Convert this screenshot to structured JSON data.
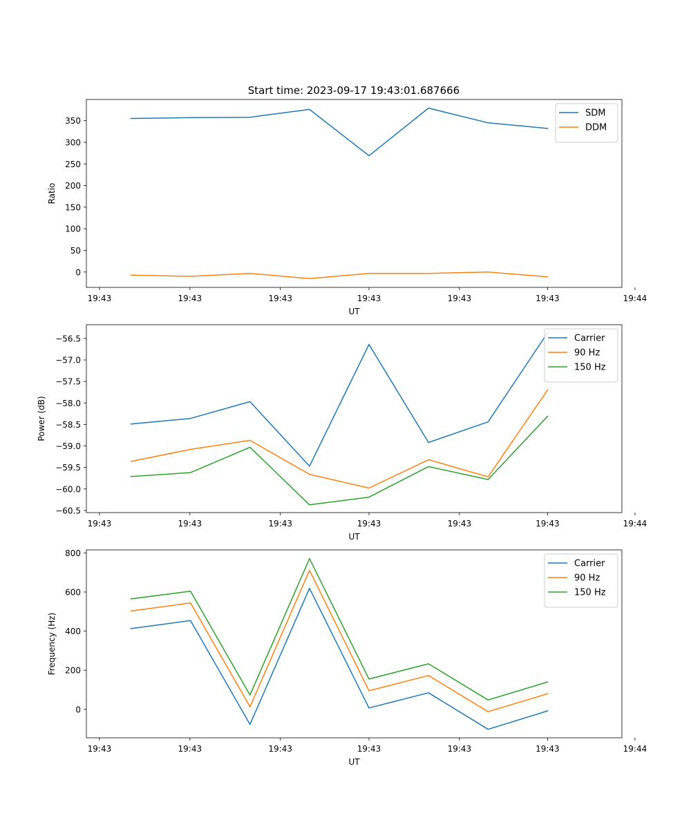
{
  "title": "Start time: 2023-09-17 19:43:01.687666",
  "colors": {
    "c0": "#1f77b4",
    "c1": "#ff7f0e",
    "c2": "#2ca02c"
  },
  "chart_data": [
    {
      "type": "line",
      "title": "Start time: 2023-09-17 19:43:01.687666",
      "xlabel": "UT",
      "ylabel": "Ratio",
      "x": [
        1,
        2,
        3,
        4,
        5,
        6,
        7,
        8
      ],
      "xlim": [
        0.25,
        9.25
      ],
      "x_ticks": [
        {
          "v": 0.47,
          "label": "19:43"
        },
        {
          "v": 1.99,
          "label": "19:43"
        },
        {
          "v": 3.51,
          "label": "19:43"
        },
        {
          "v": 5.0,
          "label": "19:43"
        },
        {
          "v": 6.52,
          "label": "19:43"
        },
        {
          "v": 8.0,
          "label": "19:43"
        },
        {
          "v": 9.47,
          "label": "19:44"
        }
      ],
      "ylim": [
        -35.5,
        399
      ],
      "y_ticks": [
        {
          "v": 0,
          "label": "0"
        },
        {
          "v": 50,
          "label": "50"
        },
        {
          "v": 100,
          "label": "100"
        },
        {
          "v": 150,
          "label": "150"
        },
        {
          "v": 200,
          "label": "200"
        },
        {
          "v": 250,
          "label": "250"
        },
        {
          "v": 300,
          "label": "300"
        },
        {
          "v": 350,
          "label": "350"
        }
      ],
      "legend_position": "top-right",
      "series": [
        {
          "name": "SDM",
          "color": "#1f77b4",
          "values": [
            355,
            357,
            358,
            376,
            269,
            379,
            345,
            332
          ]
        },
        {
          "name": "DDM",
          "color": "#ff7f0e",
          "values": [
            -7,
            -10,
            -3,
            -15,
            -3,
            -3,
            0,
            -11
          ]
        }
      ]
    },
    {
      "type": "line",
      "xlabel": "UT",
      "ylabel": "Power (dB)",
      "x": [
        1,
        2,
        3,
        4,
        5,
        6,
        7,
        8
      ],
      "xlim": [
        0.25,
        9.25
      ],
      "x_ticks": [
        {
          "v": 0.47,
          "label": "19:43"
        },
        {
          "v": 1.99,
          "label": "19:43"
        },
        {
          "v": 3.51,
          "label": "19:43"
        },
        {
          "v": 5.0,
          "label": "19:43"
        },
        {
          "v": 6.52,
          "label": "19:43"
        },
        {
          "v": 8.0,
          "label": "19:43"
        },
        {
          "v": 9.47,
          "label": "19:44"
        }
      ],
      "ylim": [
        -60.55,
        -56.18
      ],
      "y_ticks": [
        {
          "v": -60.5,
          "label": "−60.5"
        },
        {
          "v": -60.0,
          "label": "−60.0"
        },
        {
          "v": -59.5,
          "label": "−59.5"
        },
        {
          "v": -59.0,
          "label": "−59.0"
        },
        {
          "v": -58.5,
          "label": "−58.5"
        },
        {
          "v": -58.0,
          "label": "−58.0"
        },
        {
          "v": -57.5,
          "label": "−57.5"
        },
        {
          "v": -57.0,
          "label": "−57.0"
        },
        {
          "v": -56.5,
          "label": "−56.5"
        }
      ],
      "legend_position": "top-right",
      "series": [
        {
          "name": "Carrier",
          "color": "#1f77b4",
          "values": [
            -58.49,
            -58.36,
            -57.97,
            -59.47,
            -56.64,
            -58.92,
            -58.44,
            -56.37
          ]
        },
        {
          "name": "90 Hz",
          "color": "#ff7f0e",
          "values": [
            -59.36,
            -59.08,
            -58.87,
            -59.66,
            -59.98,
            -59.32,
            -59.72,
            -57.7
          ]
        },
        {
          "name": "150 Hz",
          "color": "#2ca02c",
          "values": [
            -59.71,
            -59.62,
            -59.03,
            -60.37,
            -60.19,
            -59.48,
            -59.78,
            -58.31
          ]
        }
      ]
    },
    {
      "type": "line",
      "xlabel": "UT",
      "ylabel": "Frequency (Hz)",
      "x": [
        1,
        2,
        3,
        4,
        5,
        6,
        7,
        8
      ],
      "xlim": [
        0.25,
        9.25
      ],
      "x_ticks": [
        {
          "v": 0.47,
          "label": "19:43"
        },
        {
          "v": 1.99,
          "label": "19:43"
        },
        {
          "v": 3.51,
          "label": "19:43"
        },
        {
          "v": 5.0,
          "label": "19:43"
        },
        {
          "v": 6.52,
          "label": "19:43"
        },
        {
          "v": 8.0,
          "label": "19:43"
        },
        {
          "v": 9.47,
          "label": "19:44"
        }
      ],
      "ylim": [
        -145.5,
        815.4
      ],
      "y_ticks": [
        {
          "v": 0,
          "label": "0"
        },
        {
          "v": 200,
          "label": "200"
        },
        {
          "v": 400,
          "label": "400"
        },
        {
          "v": 600,
          "label": "600"
        },
        {
          "v": 800,
          "label": "800"
        }
      ],
      "legend_position": "top-right",
      "series": [
        {
          "name": "Carrier",
          "color": "#1f77b4",
          "values": [
            413,
            454,
            -77,
            619,
            7,
            85,
            -102,
            -8
          ]
        },
        {
          "name": "90 Hz",
          "color": "#ff7f0e",
          "values": [
            503,
            544,
            13,
            711,
            95,
            173,
            -12,
            80
          ]
        },
        {
          "name": "150 Hz",
          "color": "#2ca02c",
          "values": [
            565,
            604,
            73,
            771,
            155,
            233,
            48,
            140
          ]
        }
      ]
    }
  ]
}
